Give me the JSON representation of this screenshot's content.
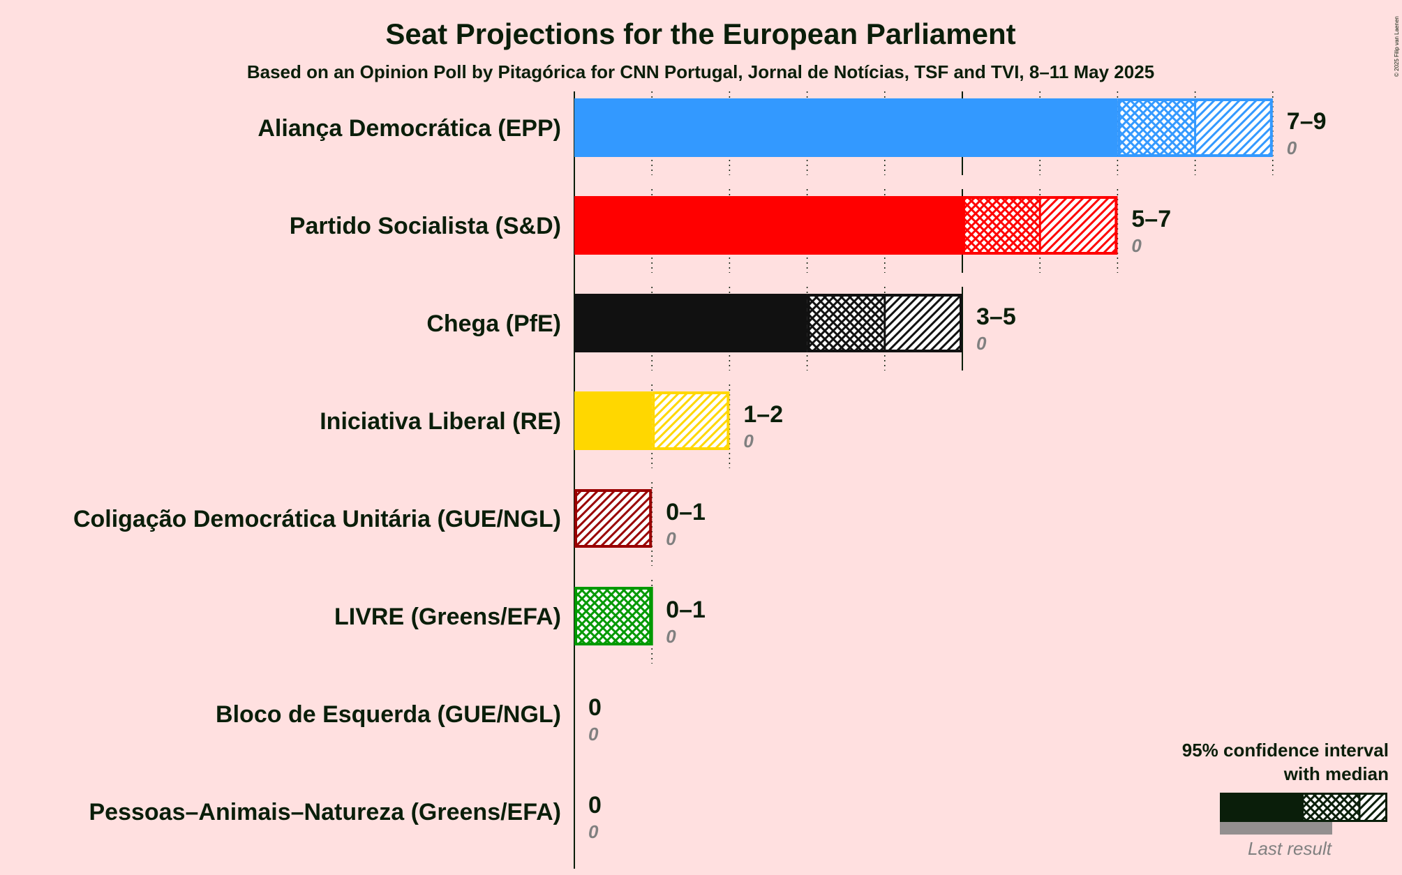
{
  "copyright": "© 2025 Filip van Laenen",
  "chart_data": {
    "type": "bar",
    "title": "Seat Projections for the European Parliament",
    "subtitle": "Based on an Opinion Poll by Pitagórica for CNN Portugal, Jornal de Notícias, TSF and TVI, 8–11 May 2025",
    "xlim": [
      0,
      9
    ],
    "grid": "dotted vertical every seat, solid every 5",
    "legend_position": "bottom-right",
    "categories": [
      "Aliança Democrática (EPP)",
      "Partido Socialista (S&D)",
      "Chega (PfE)",
      "Iniciativa Liberal (RE)",
      "Coligação Democrática Unitária (GUE/NGL)",
      "LIVRE (Greens/EFA)",
      "Bloco de Esquerda (GUE/NGL)",
      "Pessoas–Animais–Natureza (Greens/EFA)"
    ],
    "series": [
      {
        "party": "Aliança Democrática (EPP)",
        "low": 7,
        "median": 8,
        "high": 9,
        "range_label": "7–9",
        "last_result": 0,
        "last_label": "0",
        "color": "#3399FF"
      },
      {
        "party": "Partido Socialista (S&D)",
        "low": 5,
        "median": 6,
        "high": 7,
        "range_label": "5–7",
        "last_result": 0,
        "last_label": "0",
        "color": "#FF0000"
      },
      {
        "party": "Chega (PfE)",
        "low": 3,
        "median": 4,
        "high": 5,
        "range_label": "3–5",
        "last_result": 0,
        "last_label": "0",
        "color": "#111111"
      },
      {
        "party": "Iniciativa Liberal (RE)",
        "low": 1,
        "median": 1,
        "high": 2,
        "range_label": "1–2",
        "last_result": 0,
        "last_label": "0",
        "color": "#FFD700"
      },
      {
        "party": "Coligação Democrática Unitária (GUE/NGL)",
        "low": 0,
        "median": 0,
        "high": 1,
        "range_label": "0–1",
        "last_result": 0,
        "last_label": "0",
        "color": "#990000"
      },
      {
        "party": "LIVRE (Greens/EFA)",
        "low": 0,
        "median": 1,
        "high": 1,
        "range_label": "0–1",
        "last_result": 0,
        "last_label": "0",
        "color": "#009900"
      },
      {
        "party": "Bloco de Esquerda (GUE/NGL)",
        "low": 0,
        "median": 0,
        "high": 0,
        "range_label": "0",
        "last_result": 0,
        "last_label": "0",
        "color": "#CC0066"
      },
      {
        "party": "Pessoas–Animais–Natureza (Greens/EFA)",
        "low": 0,
        "median": 0,
        "high": 0,
        "range_label": "0",
        "last_result": 0,
        "last_label": "0",
        "color": "#006666"
      }
    ],
    "legend": {
      "line1": "95% confidence interval",
      "line2": "with median",
      "last_result": "Last result",
      "color": "#0A1E0A"
    }
  }
}
